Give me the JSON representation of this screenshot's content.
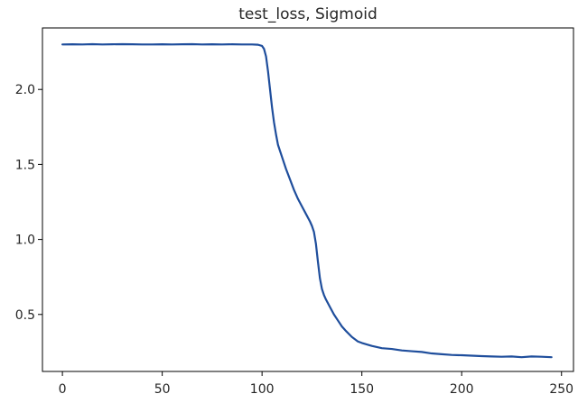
{
  "chart_data": {
    "type": "line",
    "title": "test_loss, Sigmoid",
    "xlabel": "",
    "ylabel": "",
    "xlim": [
      -10,
      256
    ],
    "ylim": [
      0.12,
      2.41
    ],
    "xticks": [
      0,
      50,
      100,
      150,
      200,
      250
    ],
    "yticks": [
      0.5,
      1.0,
      1.5,
      2.0
    ],
    "xtick_labels": [
      "0",
      "50",
      "100",
      "150",
      "200",
      "250"
    ],
    "ytick_labels": [
      "0.5",
      "1.0",
      "1.5",
      "2.0"
    ],
    "grid": false,
    "series": [
      {
        "color": "#1f4e9c",
        "x": [
          0,
          5,
          10,
          15,
          20,
          25,
          30,
          35,
          40,
          45,
          50,
          55,
          60,
          65,
          70,
          75,
          80,
          85,
          90,
          95,
          98,
          100,
          101,
          102,
          103,
          104,
          105,
          106,
          107,
          108,
          110,
          112,
          114,
          116,
          118,
          120,
          122,
          124,
          125,
          126,
          127,
          128,
          129,
          130,
          131,
          132,
          134,
          136,
          138,
          140,
          142,
          145,
          148,
          150,
          155,
          160,
          165,
          170,
          175,
          180,
          185,
          190,
          195,
          200,
          205,
          210,
          215,
          220,
          225,
          230,
          235,
          240,
          245
        ],
        "y": [
          2.3,
          2.301,
          2.3,
          2.302,
          2.3,
          2.301,
          2.302,
          2.301,
          2.3,
          2.3,
          2.301,
          2.3,
          2.301,
          2.302,
          2.3,
          2.301,
          2.3,
          2.301,
          2.3,
          2.3,
          2.298,
          2.29,
          2.27,
          2.22,
          2.12,
          2.0,
          1.88,
          1.78,
          1.7,
          1.63,
          1.55,
          1.47,
          1.4,
          1.33,
          1.27,
          1.22,
          1.17,
          1.12,
          1.09,
          1.05,
          0.97,
          0.85,
          0.74,
          0.67,
          0.63,
          0.6,
          0.55,
          0.5,
          0.46,
          0.42,
          0.39,
          0.35,
          0.32,
          0.31,
          0.29,
          0.275,
          0.27,
          0.26,
          0.255,
          0.25,
          0.24,
          0.235,
          0.23,
          0.228,
          0.225,
          0.222,
          0.22,
          0.218,
          0.22,
          0.215,
          0.22,
          0.218,
          0.215
        ]
      }
    ]
  }
}
